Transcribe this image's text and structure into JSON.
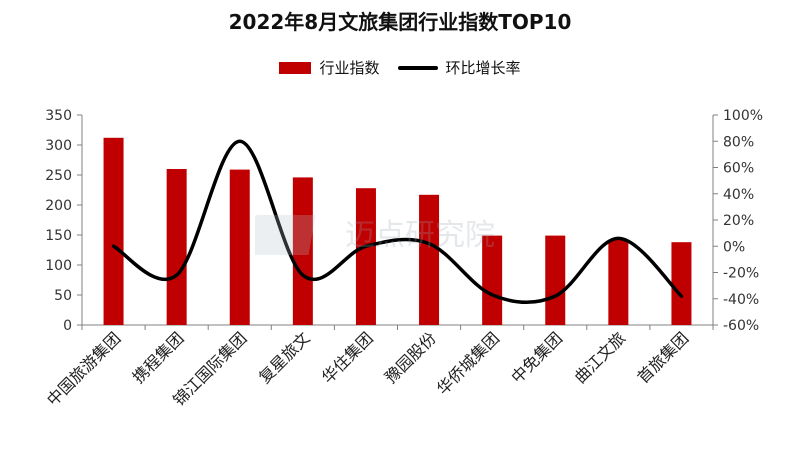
{
  "chart_data": {
    "type": "bar",
    "title": "2022年8月文旅集团行业指数TOP10",
    "categories": [
      "中国旅游集团",
      "携程集团",
      "锦江国际集团",
      "复星旅文",
      "华住集团",
      "豫园股份",
      "华侨城集团",
      "中免集团",
      "曲江文旅",
      "首旅集团"
    ],
    "series": [
      {
        "name": "行业指数",
        "type": "bar",
        "axis": "left",
        "color": "#c00000",
        "values": [
          312,
          260,
          259,
          246,
          228,
          217,
          149,
          149,
          142,
          138
        ]
      },
      {
        "name": "环比增长率",
        "type": "line",
        "axis": "right",
        "color": "#000000",
        "values": [
          0,
          -22,
          80,
          -22,
          0,
          2,
          -37,
          -38,
          6,
          -38
        ]
      }
    ],
    "left_axis": {
      "min": 0,
      "max": 350,
      "ticks": [
        "0",
        "50",
        "100",
        "150",
        "200",
        "250",
        "300",
        "350"
      ]
    },
    "right_axis": {
      "min": -60,
      "max": 100,
      "ticks": [
        "-60%",
        "-40%",
        "-20%",
        "0%",
        "20%",
        "40%",
        "60%",
        "80%",
        "100%"
      ]
    },
    "grid": false,
    "legend_position": "top-center"
  },
  "watermark": {
    "text": "迈点研究院"
  }
}
